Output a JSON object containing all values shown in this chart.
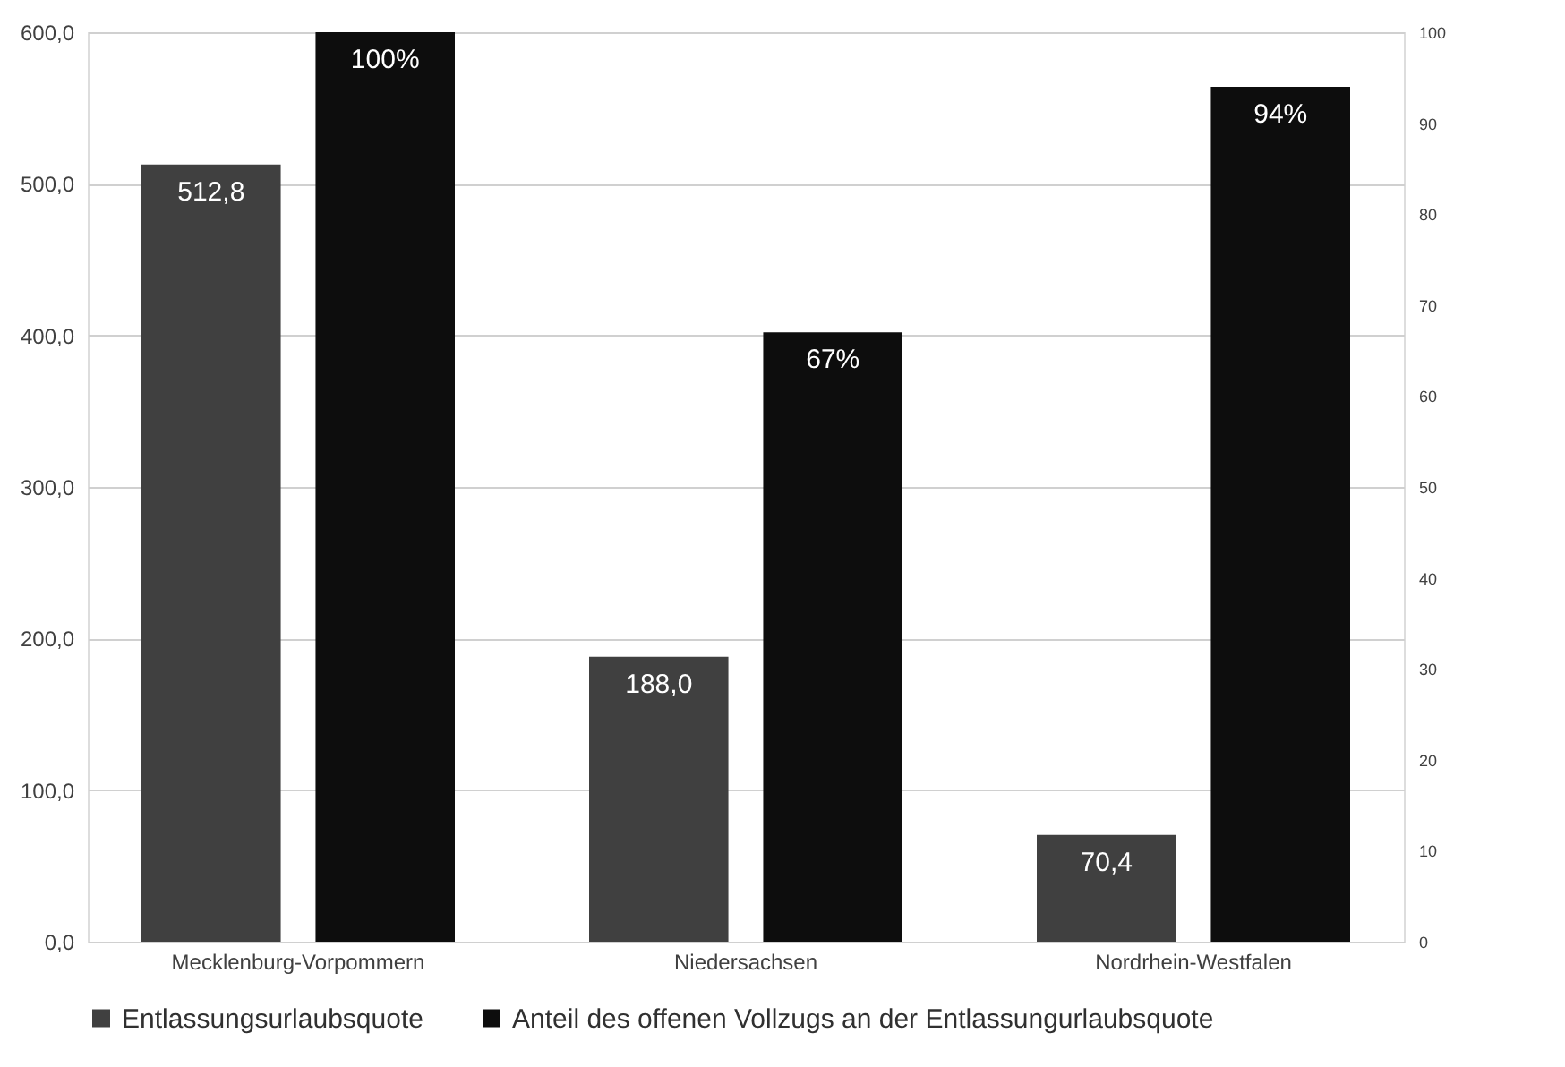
{
  "chart_data": {
    "type": "bar",
    "categories": [
      "Mecklenburg-Vorpommern",
      "Niedersachsen",
      "Nordrhein-Westfalen"
    ],
    "series": [
      {
        "name": "Entlassungsurlaubsquote",
        "color": "#404040",
        "values": [
          512.8,
          188.0,
          70.4
        ],
        "value_labels": [
          "512,8",
          "188,0",
          "70,4"
        ]
      },
      {
        "name": "Anteil des offenen Vollzugs an der Entlassungurlaubsquote",
        "color": "#0d0d0d",
        "axis": "y2",
        "values": [
          100,
          67,
          94
        ],
        "value_labels": [
          "100%",
          "67%",
          "94%"
        ]
      }
    ],
    "ylim": [
      0,
      600
    ],
    "yticks": [
      {
        "value": 0,
        "label": "0,0"
      },
      {
        "value": 100,
        "label": "100,0"
      },
      {
        "value": 200,
        "label": "200,0"
      },
      {
        "value": 300,
        "label": "300,0"
      },
      {
        "value": 400,
        "label": "400,0"
      },
      {
        "value": 500,
        "label": "500,0"
      },
      {
        "value": 600,
        "label": "600,0"
      }
    ],
    "y2lim": [
      0,
      100
    ],
    "y2ticks": [
      0,
      10,
      20,
      30,
      40,
      50,
      60,
      70,
      80,
      90,
      100
    ],
    "grid": "y",
    "legend": "bottom"
  }
}
